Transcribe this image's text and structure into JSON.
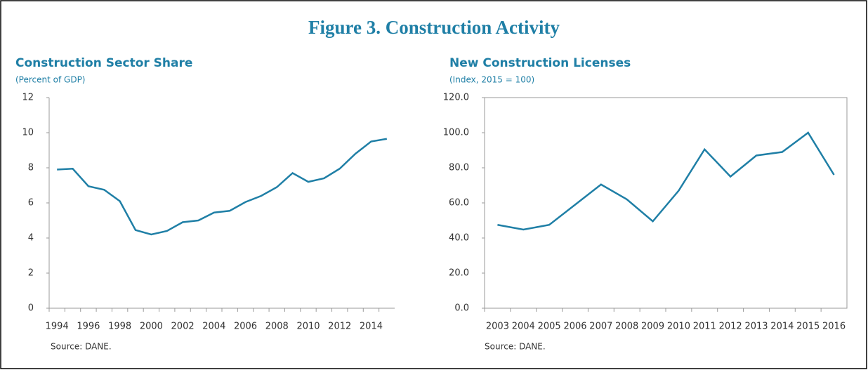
{
  "title": "Figure 3. Construction Activity",
  "chart_data": [
    {
      "type": "line",
      "title": "Construction Sector Share",
      "subtitle": "(Percent of GDP)",
      "source": "Source: DANE.",
      "categories": [
        "1994",
        null,
        "1996",
        null,
        "1998",
        null,
        "2000",
        null,
        "2002",
        null,
        "2004",
        null,
        "2006",
        null,
        "2008",
        null,
        "2010",
        null,
        "2012",
        null,
        "2014",
        null
      ],
      "series": [
        {
          "name": "Construction Sector Share",
          "color": "#1f7fa6",
          "values": [
            7.9,
            7.95,
            6.95,
            6.75,
            6.1,
            4.45,
            4.2,
            4.4,
            4.9,
            5.0,
            5.45,
            5.55,
            6.05,
            6.4,
            6.9,
            7.7,
            7.2,
            7.4,
            7.95,
            8.8,
            9.5,
            9.65
          ]
        }
      ],
      "ylim": [
        0,
        12
      ],
      "yticks": [
        0,
        2,
        4,
        6,
        8,
        10,
        12
      ],
      "frame": false
    },
    {
      "type": "line",
      "title": "New Construction Licenses",
      "subtitle": "(Index, 2015 = 100)",
      "source": "Source: DANE.",
      "categories": [
        "2003",
        "2004",
        "2005",
        "2006",
        "2007",
        "2008",
        "2009",
        "2010",
        "2011",
        "2012",
        "2013",
        "2014",
        "2015",
        "2016"
      ],
      "series": [
        {
          "name": "New Construction Licenses",
          "color": "#1f7fa6",
          "values": [
            47.5,
            44.8,
            47.5,
            59,
            70.5,
            62,
            49.5,
            67,
            90.5,
            75,
            87,
            89,
            100,
            76
          ]
        }
      ],
      "ylim": [
        0,
        120
      ],
      "yticks": [
        {
          "value": 0,
          "label": "0.0"
        },
        {
          "value": 20,
          "label": "20.0"
        },
        {
          "value": 40,
          "label": "40.0"
        },
        {
          "value": 60,
          "label": "60.0"
        },
        {
          "value": 80,
          "label": "80.0"
        },
        {
          "value": 100,
          "label": "100.0"
        },
        {
          "value": 120,
          "label": "120.0"
        }
      ],
      "frame": true
    }
  ]
}
